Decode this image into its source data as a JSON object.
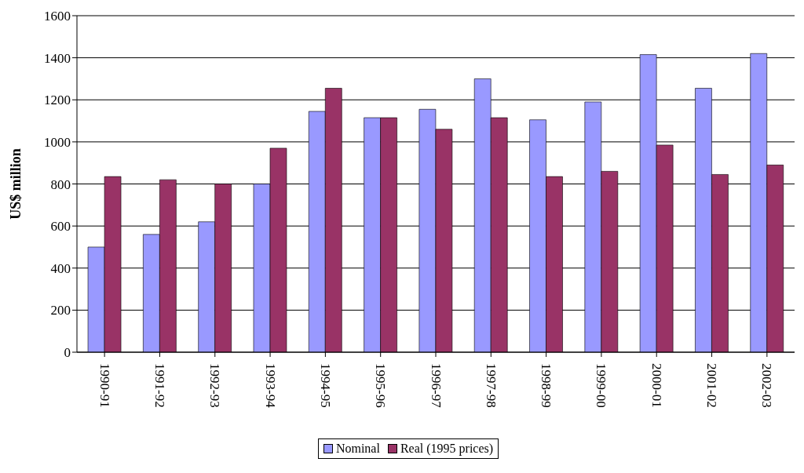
{
  "chart_data": {
    "type": "bar",
    "ylabel": "US$ million",
    "categories": [
      "1990-91",
      "1991-92",
      "1992-93",
      "1993-94",
      "1994-95",
      "1995-96",
      "1996-97",
      "1997-98",
      "1998-99",
      "1999-00",
      "2000-01",
      "2001-02",
      "2002-03"
    ],
    "series": [
      {
        "name": "Nominal",
        "color": "#9999ff",
        "values": [
          500,
          560,
          620,
          800,
          1145,
          1115,
          1155,
          1300,
          1105,
          1190,
          1415,
          1255,
          1420
        ]
      },
      {
        "name": "Real (1995 prices)",
        "color": "#993366",
        "values": [
          835,
          820,
          800,
          970,
          1255,
          1115,
          1060,
          1115,
          835,
          860,
          985,
          845,
          890
        ]
      }
    ],
    "ylim": [
      0,
      1600
    ],
    "yticks": [
      0,
      200,
      400,
      600,
      800,
      1000,
      1200,
      1400,
      1600
    ],
    "grid": "y",
    "legend": "bottom"
  }
}
